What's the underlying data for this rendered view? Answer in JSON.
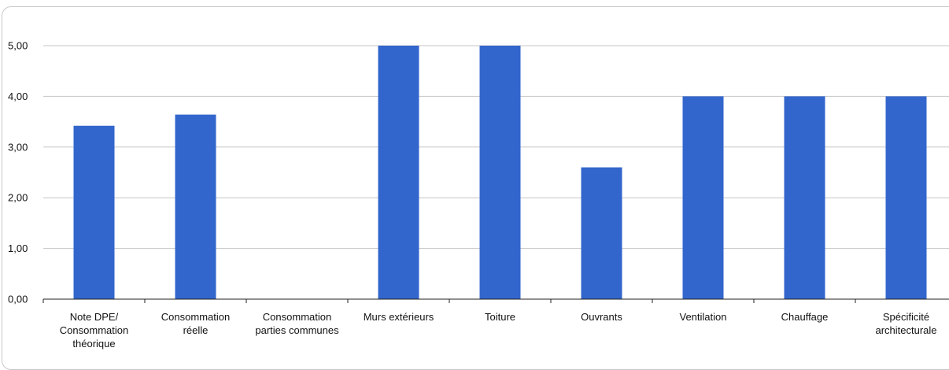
{
  "chart_data": {
    "type": "bar",
    "title": "",
    "xlabel": "",
    "ylabel": "",
    "ylim": [
      0,
      5.5
    ],
    "yticks": [
      "0,00",
      "1,00",
      "2,00",
      "3,00",
      "4,00",
      "5,00"
    ],
    "grid": true,
    "categories": [
      [
        "Note DPE/",
        "Consommation",
        "théorique"
      ],
      [
        "Consommation",
        "réelle"
      ],
      [
        "Consommation",
        "parties communes"
      ],
      [
        "Murs extérieurs"
      ],
      [
        "Toiture"
      ],
      [
        "Ouvrants"
      ],
      [
        "Ventilation"
      ],
      [
        "Chauffage"
      ],
      [
        "Spécificité",
        "architecturale"
      ]
    ],
    "values": [
      3.42,
      3.64,
      0,
      5.0,
      5.0,
      2.6,
      4.0,
      4.0,
      4.0
    ],
    "bar_color": "#3366cc"
  }
}
